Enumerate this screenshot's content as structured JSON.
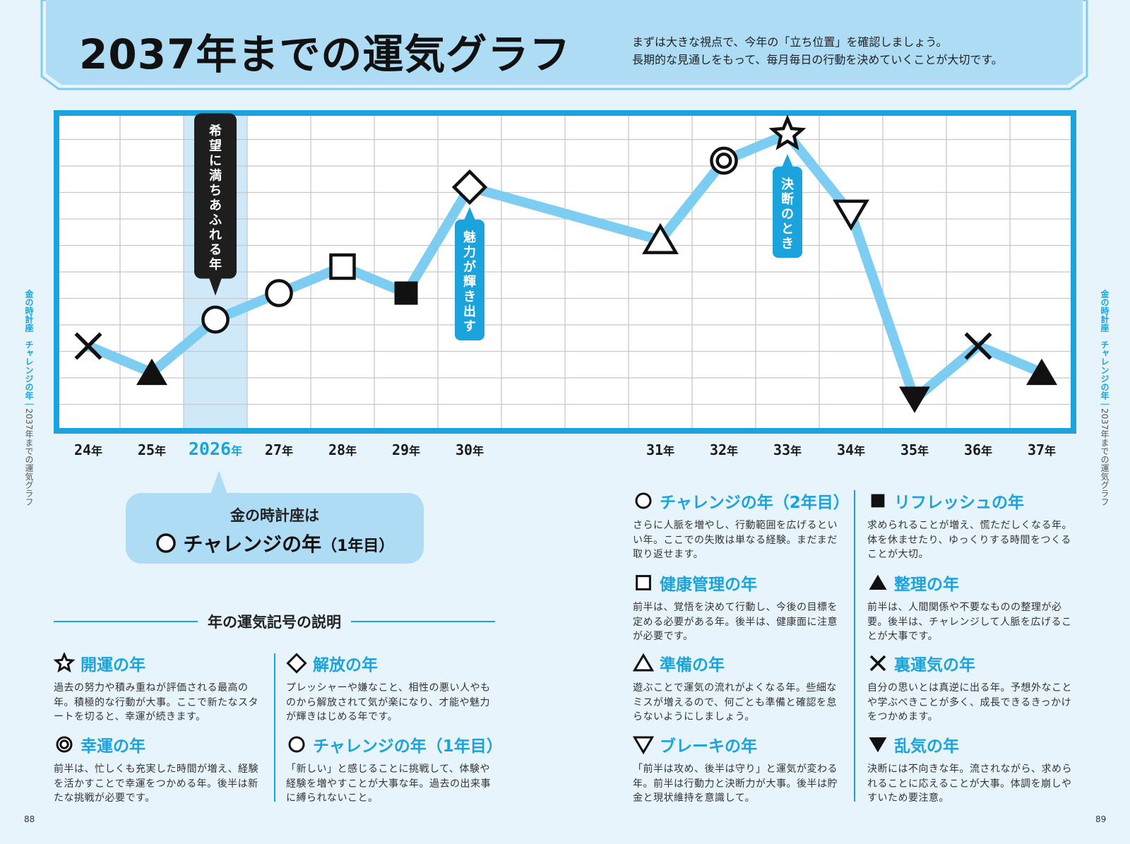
{
  "header": {
    "title": "2037年までの運気グラフ",
    "intro_line1": "まずは大きな視点で、今年の「立ち位置」を確認しましょう。",
    "intro_line2": "長期的な見通しをもって、毎月毎日の行動を決めていくことが大切です。"
  },
  "chart_data": {
    "type": "line",
    "x_labels": [
      "24年",
      "25年",
      "2026年",
      "27年",
      "28年",
      "29年",
      "30年",
      "31年",
      "32年",
      "33年",
      "34年",
      "35年",
      "36年",
      "37年"
    ],
    "x_positions": [
      0,
      1,
      2,
      3,
      4,
      5,
      6,
      9,
      10,
      11,
      12,
      13,
      14,
      15
    ],
    "values": [
      3.2,
      2.2,
      4.2,
      5.2,
      6.2,
      5.2,
      9.2,
      7.2,
      10.2,
      11.2,
      8.2,
      1.2,
      3.2,
      2.2
    ],
    "symbols": [
      "cross",
      "filled-triangle",
      "circle",
      "circle",
      "square",
      "filled-square",
      "diamond",
      "triangle",
      "double-circle",
      "star",
      "inverted-triangle",
      "filled-inverted-triangle",
      "cross",
      "filled-triangle"
    ],
    "current_index": 2,
    "ylim": [
      0,
      12
    ],
    "grid": true,
    "line_color": "#7dcdf2",
    "frame_color": "#1aa3dc",
    "callouts": [
      {
        "index": 2,
        "text": "希望に満ちあふれる年",
        "style": "dark"
      },
      {
        "index": 6,
        "text": "魅力が輝き出す",
        "style": "blue"
      },
      {
        "index": 9,
        "text": "決断のとき",
        "style": "blue"
      }
    ]
  },
  "current": {
    "line1": "金の時計座は",
    "name": "チャレンジの年",
    "sub": "（1年目）"
  },
  "legend": {
    "heading": "年の運気記号の説明",
    "items": [
      {
        "symbol": "star",
        "name": "開運の年",
        "sub": "",
        "desc": "過去の努力や積み重ねが評価される最高の年。積極的な行動が大事。ここで新たなスタートを切ると、幸運が続きます。"
      },
      {
        "symbol": "diamond",
        "name": "解放の年",
        "sub": "",
        "desc": "プレッシャーや嫌なこと、相性の悪い人やものから解放されて気が楽になり、才能や魅力が輝きはじめる年です。"
      },
      {
        "symbol": "double-circle",
        "name": "幸運の年",
        "sub": "",
        "desc": "前半は、忙しくも充実した時間が増え、経験を活かすことで幸運をつかめる年。後半は新たな挑戦が必要です。"
      },
      {
        "symbol": "circle",
        "name": "チャレンジの年",
        "sub": "（1年目）",
        "desc": "「新しい」と感じることに挑戦して、体験や経験を増やすことが大事な年。過去の出来事に縛られないこと。"
      },
      {
        "symbol": "circle",
        "name": "チャレンジの年",
        "sub": "（2年目）",
        "desc": "さらに人脈を増やし、行動範囲を広げるといい年。ここでの失敗は単なる経験。まだまだ取り返せます。"
      },
      {
        "symbol": "filled-square",
        "name": "リフレッシュの年",
        "sub": "",
        "desc": "求められることが増え、慌ただしくなる年。体を休ませたり、ゆっくりする時間をつくることが大切。"
      },
      {
        "symbol": "square",
        "name": "健康管理の年",
        "sub": "",
        "desc": "前半は、覚悟を決めて行動し、今後の目標を定める必要がある年。後半は、健康面に注意が必要です。"
      },
      {
        "symbol": "filled-triangle",
        "name": "整理の年",
        "sub": "",
        "desc": "前半は、人間関係や不要なものの整理が必要。後半は、チャレンジして人脈を広げることが大事です。"
      },
      {
        "symbol": "triangle",
        "name": "準備の年",
        "sub": "",
        "desc": "遊ぶことで運気の流れがよくなる年。些細なミスが増えるので、何ごとも準備と確認を怠らないようにしましょう。"
      },
      {
        "symbol": "cross",
        "name": "裏運気の年",
        "sub": "",
        "desc": "自分の思いとは真逆に出る年。予想外なことや学ぶべきことが多く、成長できるきっかけをつかめます。"
      },
      {
        "symbol": "inverted-triangle",
        "name": "ブレーキの年",
        "sub": "",
        "desc": "「前半は攻め、後半は守り」と運気が変わる年。前半は行動力と決断力が大事。後半は貯金と現状維持を意識して。"
      },
      {
        "symbol": "filled-inverted-triangle",
        "name": "乱気の年",
        "sub": "",
        "desc": "決断には不向きな年。流されながら、求められることに応えることが大事。体調を崩しやすいため要注意。"
      }
    ]
  },
  "side": {
    "left_title": "金の時計座　チャレンジの年",
    "left_sub": "2037年までの運気グラフ",
    "right_title": "金の時計座　チャレンジの年",
    "right_sub": "2037年までの運気グラフ"
  },
  "pages": {
    "left": "88",
    "right": "89"
  }
}
